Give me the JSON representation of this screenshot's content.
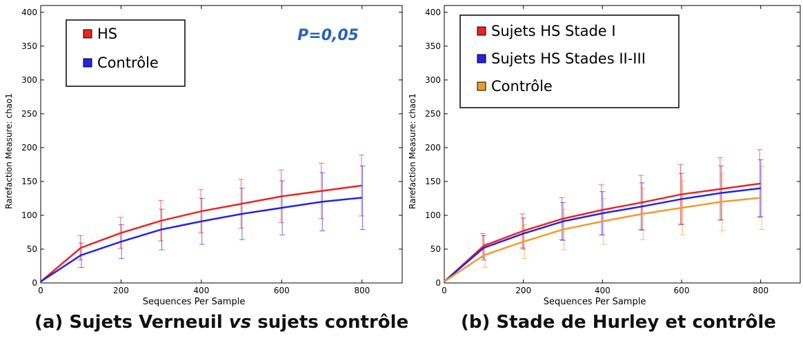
{
  "chart_data": [
    {
      "type": "line",
      "panel": "a",
      "xlabel": "Sequences Per Sample",
      "ylabel": "Rarefaction Measure: chao1",
      "xlim": [
        0,
        900
      ],
      "ylim": [
        0,
        410
      ],
      "xticks": [
        0,
        200,
        400,
        600,
        800
      ],
      "yticks": [
        0,
        50,
        100,
        150,
        200,
        250,
        300,
        350,
        400
      ],
      "grid": false,
      "legend_position": "top-left",
      "annotation": "P=0,05",
      "annotation_color": "#2a62b8",
      "x": [
        0,
        100,
        200,
        300,
        400,
        500,
        600,
        700,
        800
      ],
      "series": [
        {
          "name": "HS",
          "color": "#ee2222",
          "values": [
            2,
            52,
            74,
            92,
            106,
            117,
            128,
            136,
            144
          ],
          "error": [
            0,
            18,
            23,
            30,
            32,
            36,
            39,
            41,
            45
          ]
        },
        {
          "name": "Contrôle",
          "color": "#2222ee",
          "values": [
            2,
            41,
            61,
            79,
            91,
            102,
            111,
            120,
            126
          ],
          "error": [
            0,
            18,
            25,
            30,
            34,
            38,
            40,
            43,
            47
          ]
        }
      ]
    },
    {
      "type": "line",
      "panel": "b",
      "xlabel": "Sequences Per Sample",
      "ylabel": "Rarefaction Measure: chao1",
      "xlim": [
        0,
        900
      ],
      "ylim": [
        0,
        410
      ],
      "xticks": [
        0,
        200,
        400,
        600,
        800
      ],
      "yticks": [
        0,
        50,
        100,
        150,
        200,
        250,
        300,
        350,
        400
      ],
      "grid": false,
      "legend_position": "top-left",
      "x": [
        0,
        100,
        200,
        300,
        400,
        500,
        600,
        700,
        800
      ],
      "series": [
        {
          "name": "Sujets HS Stade I",
          "color": "#ee2222",
          "values": [
            2,
            55,
            77,
            95,
            108,
            119,
            131,
            139,
            147
          ],
          "error": [
            0,
            18,
            25,
            31,
            37,
            40,
            44,
            46,
            50
          ]
        },
        {
          "name": "Sujets HS Stades II-III",
          "color": "#2222ee",
          "values": [
            2,
            52,
            73,
            91,
            103,
            113,
            124,
            133,
            140
          ],
          "error": [
            0,
            18,
            23,
            28,
            32,
            35,
            38,
            40,
            42
          ]
        },
        {
          "name": "Contrôle",
          "color": "#f39a2e",
          "values": [
            2,
            41,
            61,
            79,
            91,
            102,
            111,
            120,
            126
          ],
          "error": [
            0,
            18,
            25,
            30,
            34,
            38,
            40,
            43,
            47
          ]
        }
      ]
    }
  ],
  "captions": {
    "a_prefix": "(a) Sujets Verneuil ",
    "a_italic": "vs",
    "a_suffix": " sujets contrôle",
    "b": "(b) Stade de Hurley et contrôle"
  }
}
